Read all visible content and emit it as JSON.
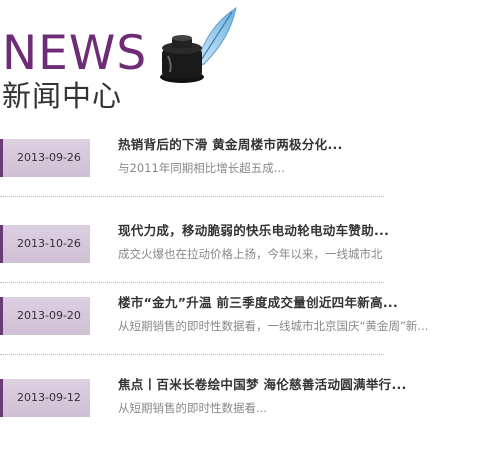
{
  "header": {
    "title_en": "NEWS",
    "title_cn": "新闻中心",
    "logo_icon": "ink-and-quill-icon"
  },
  "colors": {
    "accent": "#6d2c75",
    "date_bg": "#d7c8db"
  },
  "news": [
    {
      "date": "2013-09-26",
      "title": "热销背后的下滑 黄金周楼市两极分化...",
      "summary": "与2011年同期相比增长超五成..."
    },
    {
      "date": "2013-10-26",
      "title": "现代力成，移动脆弱的快乐电动轮电动车赞助...",
      "summary": "成交火爆也在拉动价格上扬，今年以来，一线城市北"
    },
    {
      "date": "2013-09-20",
      "title": "楼市“金九”升温 前三季度成交量创近四年新高...",
      "summary": "从短期销售的即时性数据看，一线城市北京国庆“黄金周”新..."
    },
    {
      "date": "2013-09-12",
      "title": "焦点丨百米长卷绘中国梦 海伦慈善活动圆满举行...",
      "summary": "从短期销售的即时性数据看..."
    }
  ]
}
